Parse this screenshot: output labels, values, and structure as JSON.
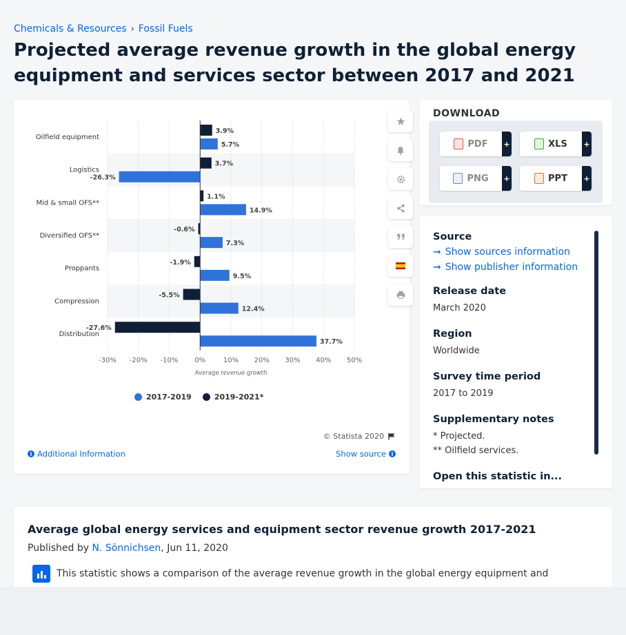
{
  "breadcrumb": {
    "item1": "Chemicals & Resources",
    "separator": "›",
    "item2": "Fossil Fuels"
  },
  "page_title": "Projected average revenue growth in the global energy equipment and services sector between 2017 and 2021",
  "chart_data": {
    "type": "bar",
    "orientation": "horizontal",
    "categories": [
      "Oilfield equipment",
      "Logistics",
      "Mid & small OFS**",
      "Diversified OFS**",
      "Proppants",
      "Compression",
      "Distribution"
    ],
    "series": [
      {
        "name": "2019-2021*",
        "color": "#0f2036",
        "values": [
          3.9,
          3.7,
          1.1,
          -0.6,
          -1.9,
          -5.5,
          -27.6
        ]
      },
      {
        "name": "2017-2019",
        "color": "#2f73d9",
        "values": [
          5.7,
          -26.3,
          14.9,
          7.3,
          9.5,
          12.4,
          37.7
        ]
      }
    ],
    "value_labels": {
      "2019-2021*": [
        "3.9%",
        "3.7%",
        "1.1%",
        "-0.6%",
        "-1.9%",
        "-5.5%",
        "-27.6%"
      ],
      "2017-2019": [
        "5.7%",
        "-26.3%",
        "14.9%",
        "7.3%",
        "9.5%",
        "12.4%",
        "37.7%"
      ]
    },
    "xlabel": "Average revenue growth",
    "xlim": [
      -30,
      50
    ],
    "xticks": [
      "-30%",
      "-20%",
      "-10%",
      "0%",
      "10%",
      "20%",
      "30%",
      "40%",
      "50%"
    ],
    "grid": true,
    "legend_position": "bottom"
  },
  "legend": [
    {
      "label": "2017-2019",
      "color": "#2f73d9"
    },
    {
      "label": "2019-2021*",
      "color": "#0f2036"
    }
  ],
  "chart_footer": {
    "copyright": "© Statista 2020",
    "additional_info": "Additional Information",
    "show_source": "Show source"
  },
  "download": {
    "title": "DOWNLOAD",
    "buttons": [
      {
        "label": "PDF",
        "plus": "+"
      },
      {
        "label": "XLS",
        "plus": "+"
      },
      {
        "label": "PNG",
        "plus": "+"
      },
      {
        "label": "PPT",
        "plus": "+"
      }
    ]
  },
  "info": {
    "source_title": "Source",
    "show_sources": "Show sources information",
    "show_publisher": "Show publisher information",
    "release_date_title": "Release date",
    "release_date": "March 2020",
    "region_title": "Region",
    "region": "Worldwide",
    "survey_title": "Survey time period",
    "survey": "2017 to 2019",
    "notes_title": "Supplementary notes",
    "note1": "* Projected.",
    "note2": "** Oilfield services.",
    "open_title": "Open this statistic in..."
  },
  "article": {
    "title": "Average global energy services and equipment sector revenue growth 2017-2021",
    "published_prefix": "Published by",
    "author": "N. Sönnichsen",
    "date": ", Jun 11, 2020",
    "text": "This statistic shows a comparison of the average revenue growth in the global energy equipment and"
  }
}
